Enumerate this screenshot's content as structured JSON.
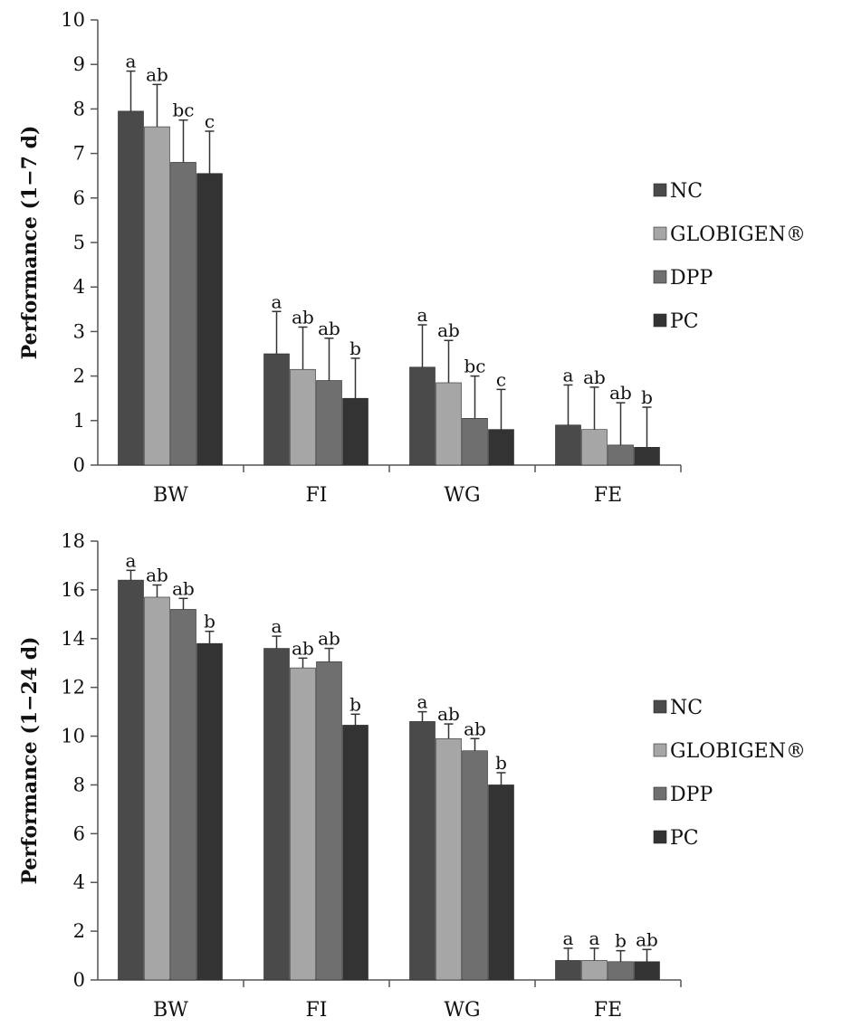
{
  "colors": {
    "NC": "#4a4a4a",
    "GLOBIGEN®": "#a6a6a6",
    "DPP": "#6f6f6f",
    "PC": "#333333",
    "axis": "#555555",
    "error": "#333333"
  },
  "chart_data": [
    {
      "type": "bar",
      "title": "",
      "xlabel": "",
      "ylabel": "Performance  (1−7 d)",
      "ylim": [
        0,
        10
      ],
      "yticks": [
        0,
        1,
        2,
        3,
        4,
        5,
        6,
        7,
        8,
        9,
        10
      ],
      "categories": [
        "BW",
        "FI",
        "WG",
        "FE"
      ],
      "legend_position": "right",
      "series": [
        {
          "name": "NC",
          "values": [
            7.95,
            2.5,
            2.2,
            0.9
          ],
          "errors": [
            0.9,
            0.95,
            0.95,
            0.9
          ],
          "letters": [
            "a",
            "a",
            "a",
            "a"
          ]
        },
        {
          "name": "GLOBIGEN®",
          "values": [
            7.6,
            2.15,
            1.85,
            0.8
          ],
          "errors": [
            0.95,
            0.95,
            0.95,
            0.95
          ],
          "letters": [
            "ab",
            "ab",
            "ab",
            "ab"
          ]
        },
        {
          "name": "DPP",
          "values": [
            6.8,
            1.9,
            1.05,
            0.45
          ],
          "errors": [
            0.95,
            0.95,
            0.95,
            0.95
          ],
          "letters": [
            "bc",
            "ab",
            "bc",
            "ab"
          ]
        },
        {
          "name": "PC",
          "values": [
            6.55,
            1.5,
            0.8,
            0.4
          ],
          "errors": [
            0.95,
            0.9,
            0.9,
            0.9
          ],
          "letters": [
            "c",
            "b",
            "c",
            "b"
          ]
        }
      ]
    },
    {
      "type": "bar",
      "title": "",
      "xlabel": "",
      "ylabel": "Performance  (1−24 d)",
      "ylim": [
        0,
        18
      ],
      "yticks": [
        0,
        2,
        4,
        6,
        8,
        10,
        12,
        14,
        16,
        18
      ],
      "categories": [
        "BW",
        "FI",
        "WG",
        "FE"
      ],
      "legend_position": "right",
      "series": [
        {
          "name": "NC",
          "values": [
            16.4,
            13.6,
            10.6,
            0.8
          ],
          "errors": [
            0.4,
            0.5,
            0.4,
            0.5
          ],
          "letters": [
            "a",
            "a",
            "a",
            "a"
          ]
        },
        {
          "name": "GLOBIGEN®",
          "values": [
            15.7,
            12.8,
            9.9,
            0.8
          ],
          "errors": [
            0.5,
            0.4,
            0.6,
            0.5
          ],
          "letters": [
            "ab",
            "ab",
            "ab",
            "a"
          ]
        },
        {
          "name": "DPP",
          "values": [
            15.2,
            13.05,
            9.4,
            0.75
          ],
          "errors": [
            0.45,
            0.55,
            0.5,
            0.45
          ],
          "letters": [
            "ab",
            "ab",
            "ab",
            "b"
          ]
        },
        {
          "name": "PC",
          "values": [
            13.8,
            10.45,
            8.0,
            0.75
          ],
          "errors": [
            0.5,
            0.45,
            0.5,
            0.5
          ],
          "letters": [
            "b",
            "b",
            "b",
            "ab"
          ]
        }
      ]
    }
  ]
}
